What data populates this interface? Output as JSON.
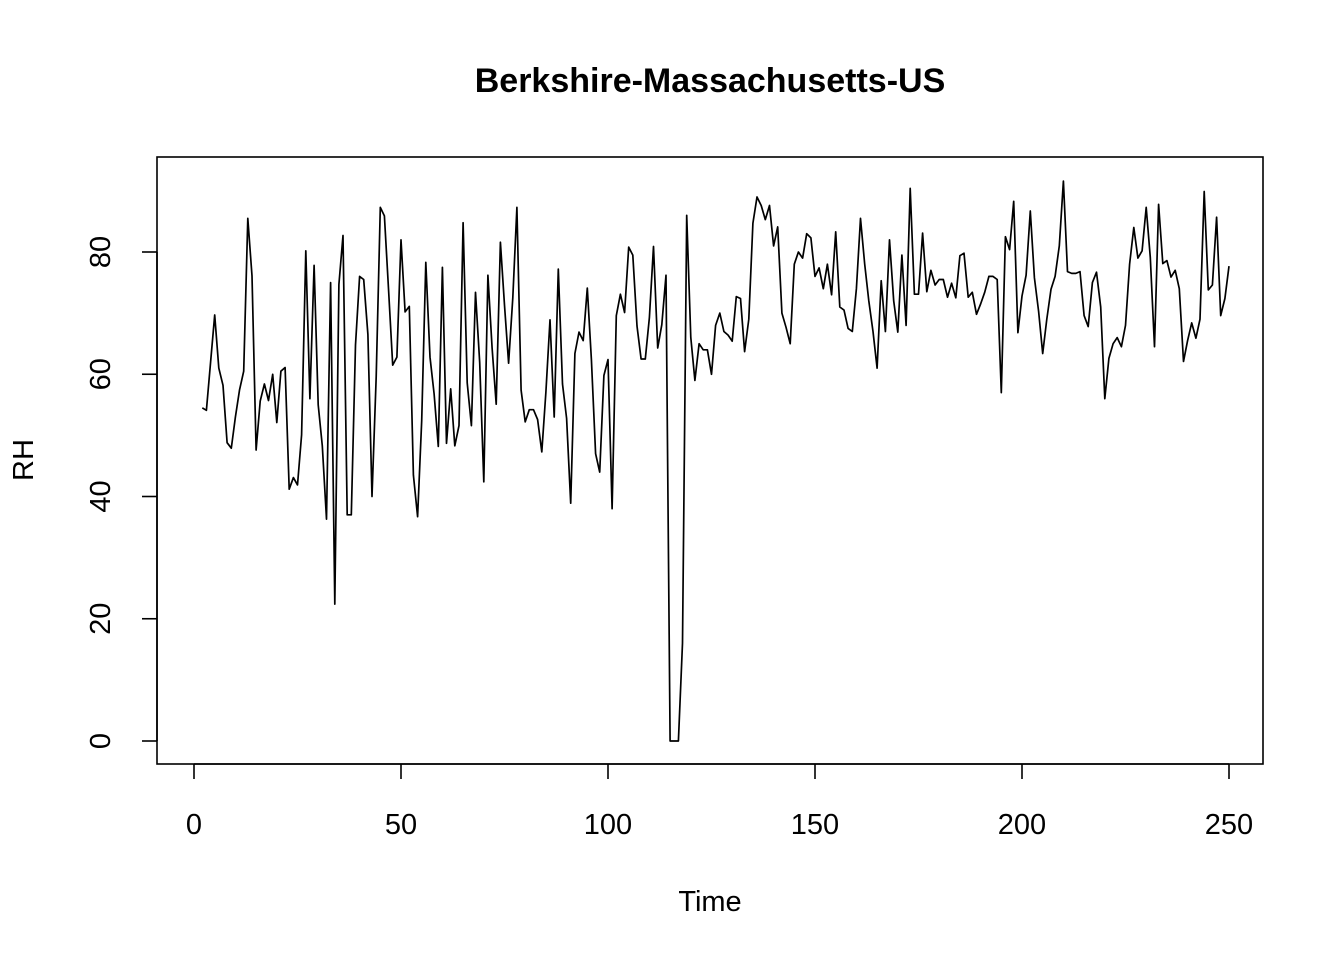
{
  "chart_data": {
    "type": "line",
    "title": "Berkshire-Massachusetts-US",
    "xlabel": "Time",
    "ylabel": "RH",
    "xlim": [
      0,
      250
    ],
    "ylim": [
      0,
      90
    ],
    "x_ticks": [
      0,
      50,
      100,
      150,
      200,
      250
    ],
    "x_tick_labels": [
      "0",
      "50",
      "100",
      "150",
      "200",
      "250"
    ],
    "y_ticks": [
      0,
      20,
      40,
      60,
      80
    ],
    "y_tick_labels": [
      "0",
      "20",
      "40",
      "60",
      "80"
    ],
    "grid": false,
    "line_color": "#000000",
    "x_start": 2,
    "series": [
      {
        "values": [
          54.5,
          54.1,
          62,
          69.7,
          61,
          58.2,
          48.8,
          47.9,
          53,
          57.4,
          60.5,
          85.5,
          76.1,
          47.6,
          55.6,
          58.4,
          55.7,
          60,
          52.1,
          60.5,
          61.1,
          41.2,
          43.1,
          41.9,
          50.1,
          80.2,
          56,
          77.8,
          55,
          48.3,
          36.3,
          75,
          22.4,
          74.7,
          82.7,
          37,
          37,
          64.8,
          76,
          75.5,
          66.5,
          40,
          59.6,
          87.3,
          85.9,
          73.7,
          61.5,
          62.8,
          82,
          70.2,
          71.1,
          43.5,
          36.7,
          52.4,
          78.3,
          62.8,
          56.8,
          48.2,
          77.5,
          48.7,
          57.6,
          48.3,
          51.6,
          84.8,
          58.6,
          51.6,
          73.4,
          61.9,
          42.4,
          76.2,
          64.3,
          55.1,
          81.6,
          71.3,
          61.8,
          72.5,
          87.3,
          57.4,
          52.2,
          54.2,
          54.2,
          52.6,
          47.3,
          57.1,
          68.9,
          53,
          77.2,
          58.4,
          52.8,
          38.9,
          63.4,
          66.9,
          65.5,
          74.1,
          62.4,
          47,
          44,
          59.8,
          62.4,
          38,
          69.6,
          73.1,
          70.1,
          80.8,
          79.5,
          67.9,
          62.5,
          62.5,
          69.3,
          80.9,
          64.3,
          68.1,
          76.2,
          0,
          0,
          0,
          16,
          86,
          66,
          59,
          65,
          64,
          64,
          60,
          68,
          70,
          67,
          66.4,
          65.4,
          72.7,
          72.4,
          63.7,
          69,
          84.7,
          89,
          87.6,
          85.3,
          87.6,
          81,
          84.1,
          70,
          67.7,
          65,
          78,
          80,
          79,
          83,
          82.3,
          76,
          77.4,
          74,
          78,
          73,
          83.3,
          71,
          70.5,
          67.5,
          67,
          74,
          85.5,
          78,
          72,
          67,
          61,
          75.3,
          67,
          82,
          72,
          66.9,
          79.5,
          68,
          90.4,
          73.1,
          73.1,
          83.1,
          73.5,
          77,
          74.6,
          75.5,
          75.5,
          72.6,
          74.9,
          72.5,
          79.4,
          79.8,
          72.6,
          73.4,
          69.8,
          71.5,
          73.4,
          76,
          76,
          75.5,
          57,
          82.5,
          80.4,
          88.3,
          66.8,
          72.8,
          76.2,
          86.7,
          75.8,
          70.3,
          63.4,
          69,
          73.9,
          76,
          81,
          91.6,
          76.8,
          76.5,
          76.5,
          76.8,
          69.6,
          67.8,
          75,
          76.7,
          71,
          56,
          62.6,
          65,
          66,
          64.5,
          68,
          78,
          84,
          79,
          80.2,
          87.3,
          79.1,
          64.5,
          87.8,
          78.1,
          78.6,
          75.9,
          77,
          74,
          62.1,
          65.5,
          68.4,
          65.9,
          69,
          89.9,
          73.8,
          74.6,
          85.7,
          69.6,
          72.4,
          77.7
        ]
      }
    ]
  }
}
